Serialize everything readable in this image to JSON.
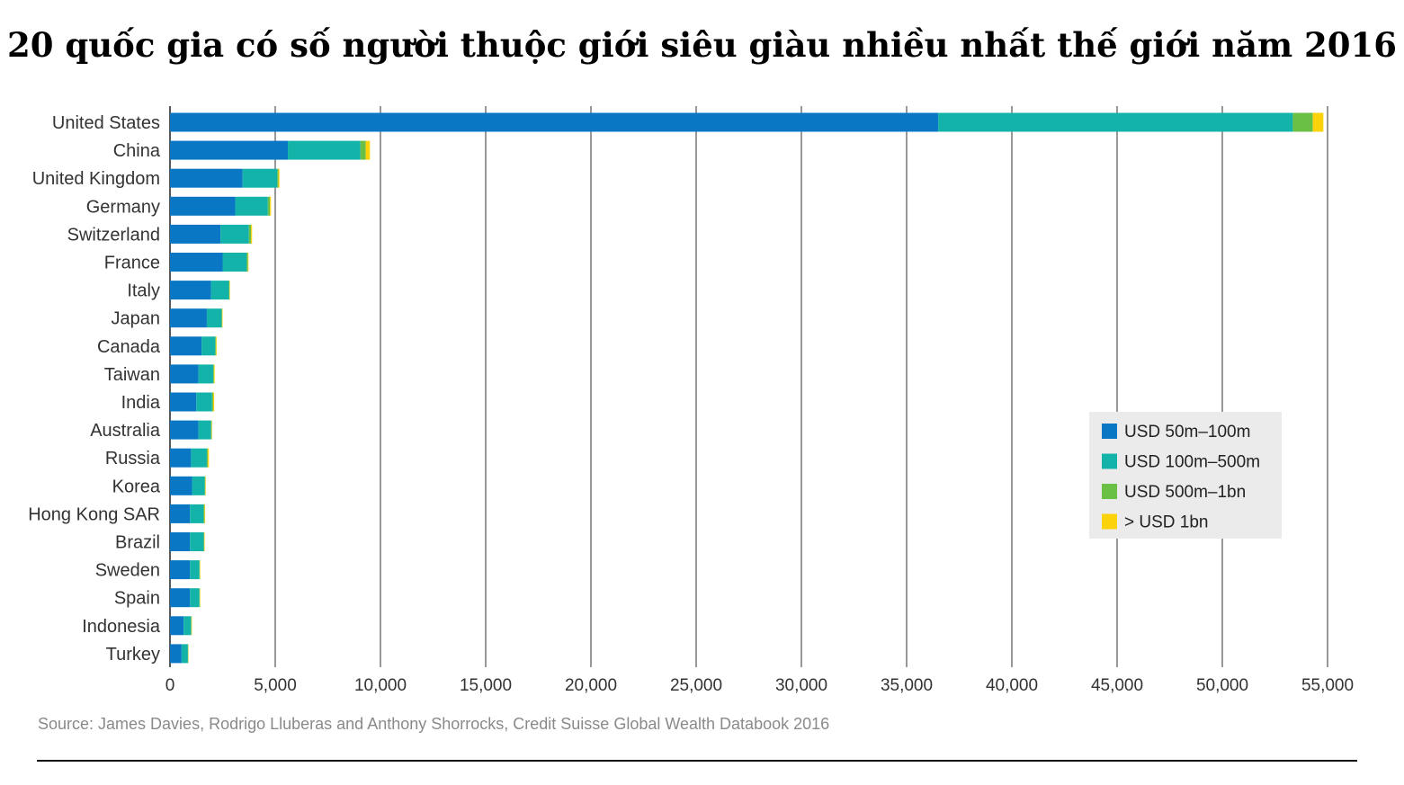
{
  "chart_data": {
    "type": "bar",
    "orientation": "horizontal",
    "stacked": true,
    "title": "20 quốc gia có số người thuộc giới siêu giàu nhiều nhất thế giới năm 2016",
    "source": "Source: James Davies, Rodrigo Lluberas and Anthony Shorrocks, Credit Suisse Global Wealth Databook 2016",
    "categories": [
      "United States",
      "China",
      "United Kingdom",
      "Germany",
      "Switzerland",
      "France",
      "Italy",
      "Japan",
      "Canada",
      "Taiwan",
      "India",
      "Australia",
      "Russia",
      "Korea",
      "Hong Kong SAR",
      "Brazil",
      "Sweden",
      "Spain",
      "Indonesia",
      "Turkey"
    ],
    "series": [
      {
        "name": "USD 50m–100m",
        "color": "#0a77c5",
        "values": [
          36500,
          5600,
          3450,
          3100,
          2400,
          2500,
          1950,
          1750,
          1500,
          1350,
          1250,
          1350,
          1000,
          1050,
          950,
          950,
          950,
          950,
          650,
          550
        ]
      },
      {
        "name": "USD 100m–500m",
        "color": "#14b3aa",
        "values": [
          16850,
          3450,
          1650,
          1550,
          1350,
          1150,
          850,
          700,
          650,
          700,
          750,
          600,
          750,
          600,
          650,
          650,
          450,
          450,
          350,
          300
        ]
      },
      {
        "name": "USD 500m–1bn",
        "color": "#6abf45",
        "values": [
          950,
          250,
          50,
          100,
          100,
          50,
          30,
          30,
          40,
          40,
          50,
          30,
          50,
          30,
          40,
          30,
          20,
          20,
          20,
          20
        ]
      },
      {
        "name": "> USD 1bn",
        "color": "#fcd20a",
        "values": [
          500,
          200,
          50,
          50,
          50,
          30,
          20,
          20,
          30,
          30,
          50,
          20,
          50,
          20,
          30,
          20,
          20,
          20,
          20,
          10
        ]
      }
    ],
    "xlim": [
      0,
      55000
    ],
    "xticks": [
      0,
      5000,
      10000,
      15000,
      20000,
      25000,
      30000,
      35000,
      40000,
      45000,
      50000,
      55000
    ],
    "xtick_labels": [
      "0",
      "5,000",
      "10,000",
      "15,000",
      "20,000",
      "25,000",
      "30,000",
      "35,000",
      "40,000",
      "45,000",
      "50,000",
      "55,000"
    ],
    "grid": true,
    "legend_position": "right"
  },
  "colors": {
    "grid": "#555555",
    "legend_bg": "#ebebeb"
  }
}
